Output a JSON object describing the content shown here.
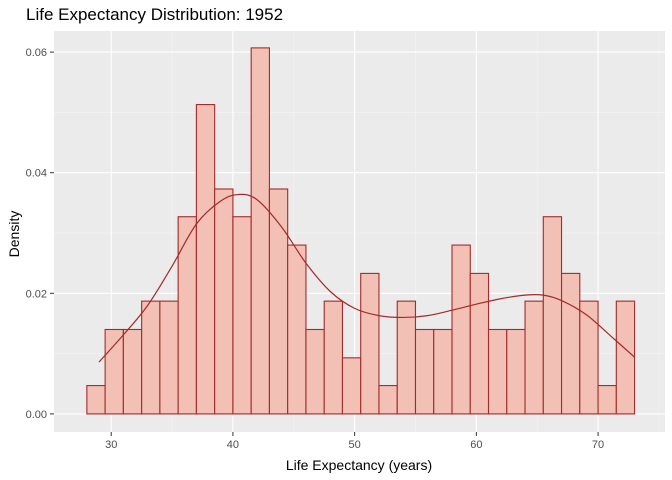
{
  "chart_data": {
    "type": "bar",
    "title": "Life Expectancy Distribution: 1952",
    "xlabel": "Life Expectancy (years)",
    "ylabel": "Density",
    "xlim": [
      25.3,
      75.5
    ],
    "ylim": [
      -0.003,
      0.0635
    ],
    "x_ticks": [
      30,
      40,
      50,
      60,
      70
    ],
    "x_tick_labels": [
      "30",
      "40",
      "50",
      "60",
      "70"
    ],
    "y_ticks": [
      0,
      0.02,
      0.04,
      0.06
    ],
    "y_tick_labels": [
      "0.00",
      "0.02",
      "0.04",
      "0.06"
    ],
    "bins": {
      "left_edges": [
        28.0,
        29.5,
        31.0,
        32.5,
        34.0,
        35.5,
        37.0,
        38.5,
        40.0,
        41.5,
        43.0,
        44.5,
        46.0,
        47.5,
        49.0,
        50.5,
        52.0,
        53.5,
        55.0,
        56.5,
        58.0,
        59.5,
        61.0,
        62.5,
        64.0,
        65.5,
        67.0,
        68.5,
        70.0,
        71.5
      ],
      "width": 1.5,
      "values": [
        0.0047,
        0.014,
        0.014,
        0.0187,
        0.0187,
        0.0327,
        0.0513,
        0.0373,
        0.0327,
        0.0607,
        0.0373,
        0.028,
        0.014,
        0.0187,
        0.0093,
        0.0233,
        0.0047,
        0.0187,
        0.014,
        0.014,
        0.028,
        0.0233,
        0.014,
        0.014,
        0.0187,
        0.0327,
        0.0233,
        0.0187,
        0.0047,
        0.0187
      ]
    },
    "density": {
      "x": [
        29.0,
        31.0,
        33.0,
        35.0,
        37.0,
        39.0,
        40.5,
        42.0,
        44.0,
        46.0,
        48.0,
        50.0,
        52.0,
        54.0,
        56.0,
        58.0,
        60.0,
        62.0,
        64.0,
        65.5,
        67.0,
        69.0,
        71.0,
        73.0
      ],
      "y": [
        0.0086,
        0.0131,
        0.018,
        0.0245,
        0.0315,
        0.0353,
        0.0364,
        0.0355,
        0.031,
        0.025,
        0.0203,
        0.0175,
        0.0163,
        0.016,
        0.0163,
        0.0172,
        0.0182,
        0.0191,
        0.0197,
        0.0197,
        0.0188,
        0.0165,
        0.013,
        0.0094
      ]
    },
    "grid": true,
    "legend": "none",
    "colors": {
      "panel_background": "#ebebeb",
      "grid_major": "#ffffff",
      "grid_minor": "#f5f5f5",
      "bar_fill": "#f2c0b5",
      "bar_outline": "#a52a2a",
      "density_line": "#a52a2a"
    }
  }
}
